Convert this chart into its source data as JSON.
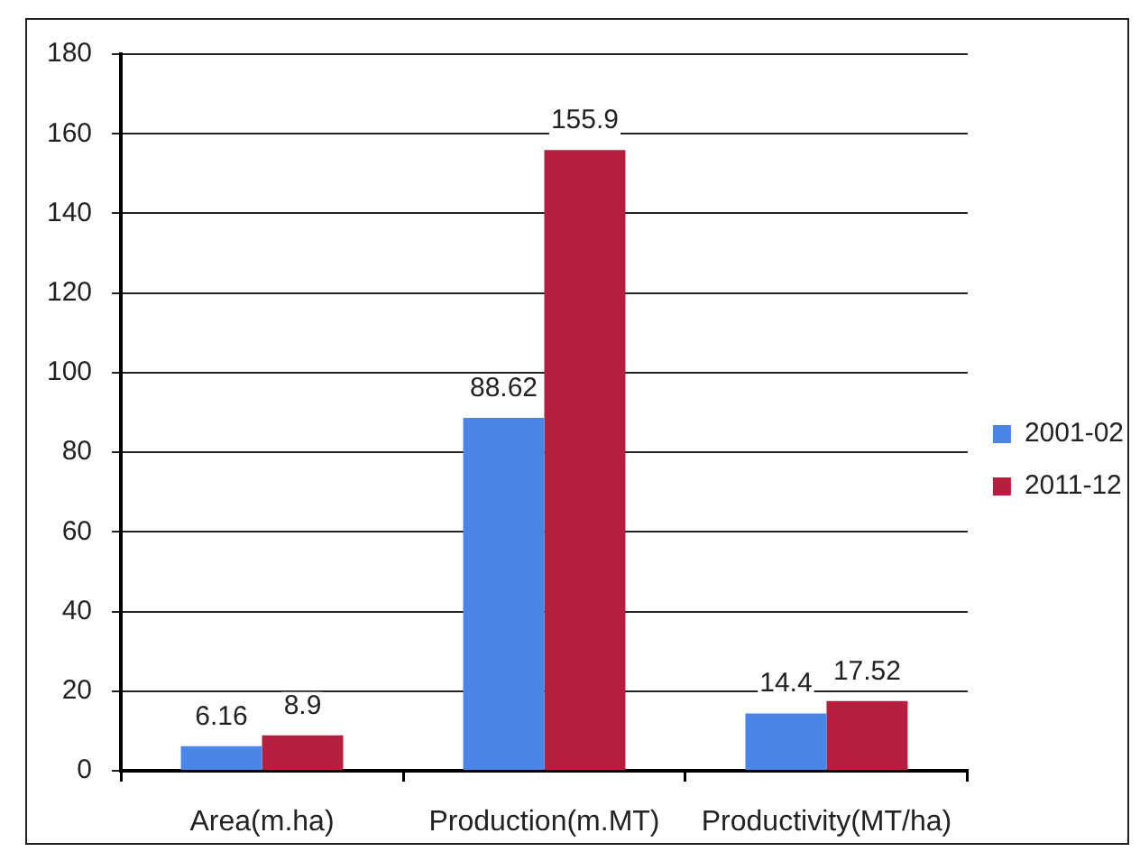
{
  "chart_data": {
    "type": "bar",
    "categories": [
      "Area(m.ha)",
      "Production(m.MT)",
      "Productivity(MT/ha)"
    ],
    "series": [
      {
        "name": "2001-02",
        "color": "#4a86e8",
        "values": [
          6.16,
          88.62,
          14.4
        ]
      },
      {
        "name": "2011-12",
        "color": "#b51f3d",
        "values": [
          8.9,
          155.9,
          17.52
        ]
      }
    ],
    "ylim": [
      0,
      180
    ],
    "yticks": [
      0,
      20,
      40,
      60,
      80,
      100,
      120,
      140,
      160,
      180
    ],
    "grid": "y",
    "legend": "right",
    "data_labels": true
  }
}
